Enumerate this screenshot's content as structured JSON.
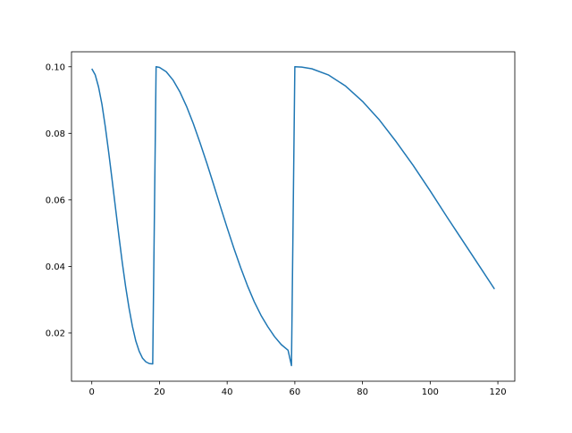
{
  "chart_data": {
    "type": "line",
    "title": "",
    "xlabel": "",
    "ylabel": "",
    "xlim": [
      -6,
      125
    ],
    "ylim": [
      0.0055,
      0.1045
    ],
    "xticks": [
      0,
      20,
      40,
      60,
      80,
      100,
      120
    ],
    "yticks": [
      0.02,
      0.04,
      0.06,
      0.08,
      0.1
    ],
    "xtick_labels": [
      "0",
      "20",
      "40",
      "60",
      "80",
      "100",
      "120"
    ],
    "ytick_labels": [
      "0.02",
      "0.04",
      "0.06",
      "0.08",
      "0.10"
    ],
    "grid": false,
    "legend": "none",
    "line_color": "#1f77b4",
    "series": [
      {
        "x": [
          0,
          1,
          2,
          3,
          4,
          5,
          6,
          7,
          8,
          9,
          10,
          11,
          12,
          13,
          14,
          15,
          16,
          17,
          18,
          19,
          20,
          22,
          24,
          26,
          28,
          30,
          32,
          34,
          36,
          38,
          40,
          42,
          44,
          46,
          48,
          50,
          52,
          54,
          56,
          58,
          59,
          60,
          62,
          65,
          70,
          75,
          80,
          85,
          90,
          95,
          100,
          105,
          110,
          115,
          119
        ],
        "values": [
          0.0994,
          0.0976,
          0.0939,
          0.0887,
          0.0819,
          0.0742,
          0.066,
          0.0576,
          0.0492,
          0.0412,
          0.0339,
          0.0275,
          0.022,
          0.0176,
          0.0145,
          0.0124,
          0.0113,
          0.0108,
          0.0107,
          0.1,
          0.0998,
          0.0985,
          0.096,
          0.0925,
          0.0881,
          0.0829,
          0.0771,
          0.071,
          0.0646,
          0.058,
          0.0516,
          0.0454,
          0.0396,
          0.0342,
          0.0294,
          0.0253,
          0.0219,
          0.0189,
          0.0165,
          0.0148,
          0.0102,
          0.1,
          0.0999,
          0.0994,
          0.0975,
          0.0942,
          0.0896,
          0.084,
          0.0774,
          0.0703,
          0.0627,
          0.0548,
          0.0471,
          0.0394,
          0.0332
        ]
      }
    ]
  }
}
